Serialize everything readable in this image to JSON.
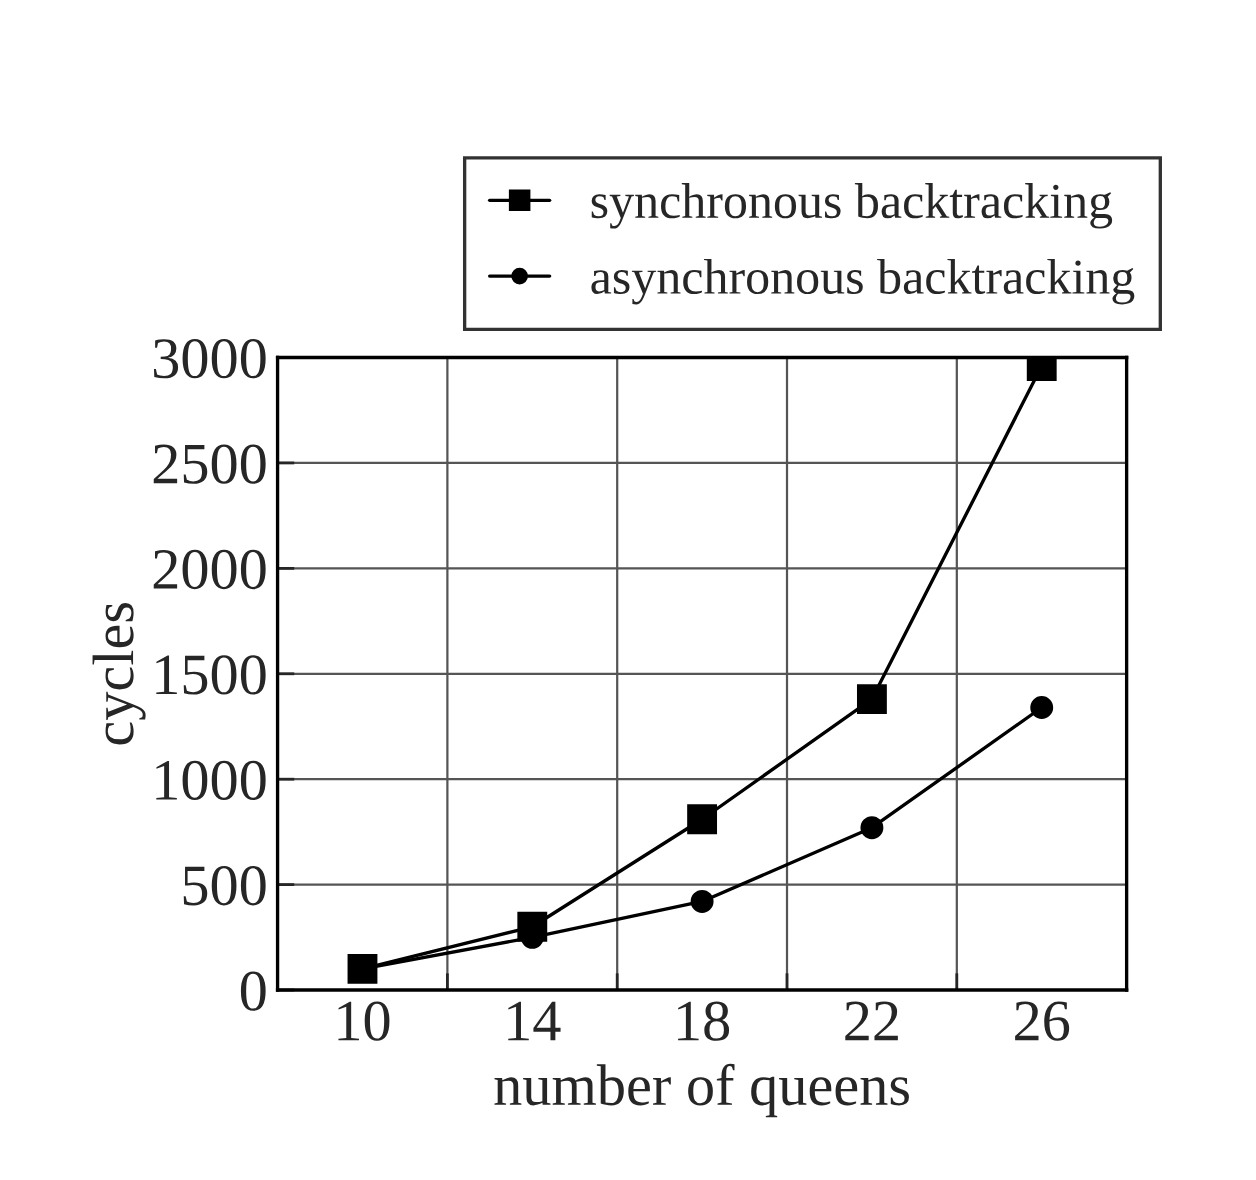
{
  "chart_data": {
    "type": "line",
    "xlabel": "number of queens",
    "ylabel": "cycles",
    "x": [
      10,
      14,
      18,
      22,
      26
    ],
    "series": [
      {
        "name": "synchronous backtracking",
        "color": "#000000",
        "values": [
          100,
          300,
          810,
          1380,
          2960
        ],
        "marker": "square"
      },
      {
        "name": "asynchronous backtracking",
        "color": "#000000",
        "values": [
          100,
          250,
          420,
          770,
          1340
        ],
        "marker": "circle"
      }
    ],
    "xlim": [
      8,
      28
    ],
    "xticks": [
      {
        "value": 8,
        "label": null
      },
      10,
      {
        "value": 12,
        "label": null
      },
      14,
      {
        "value": 16,
        "label": null
      },
      18,
      {
        "value": 20,
        "label": null
      },
      22,
      {
        "value": 24,
        "label": null
      },
      26,
      {
        "value": 28,
        "label": null
      }
    ],
    "ylim": [
      0,
      3000
    ],
    "yticks": [
      0,
      500,
      1000,
      1500,
      2000,
      2500,
      3000
    ],
    "grid": true,
    "legend": "top",
    "line_style": "solid"
  }
}
